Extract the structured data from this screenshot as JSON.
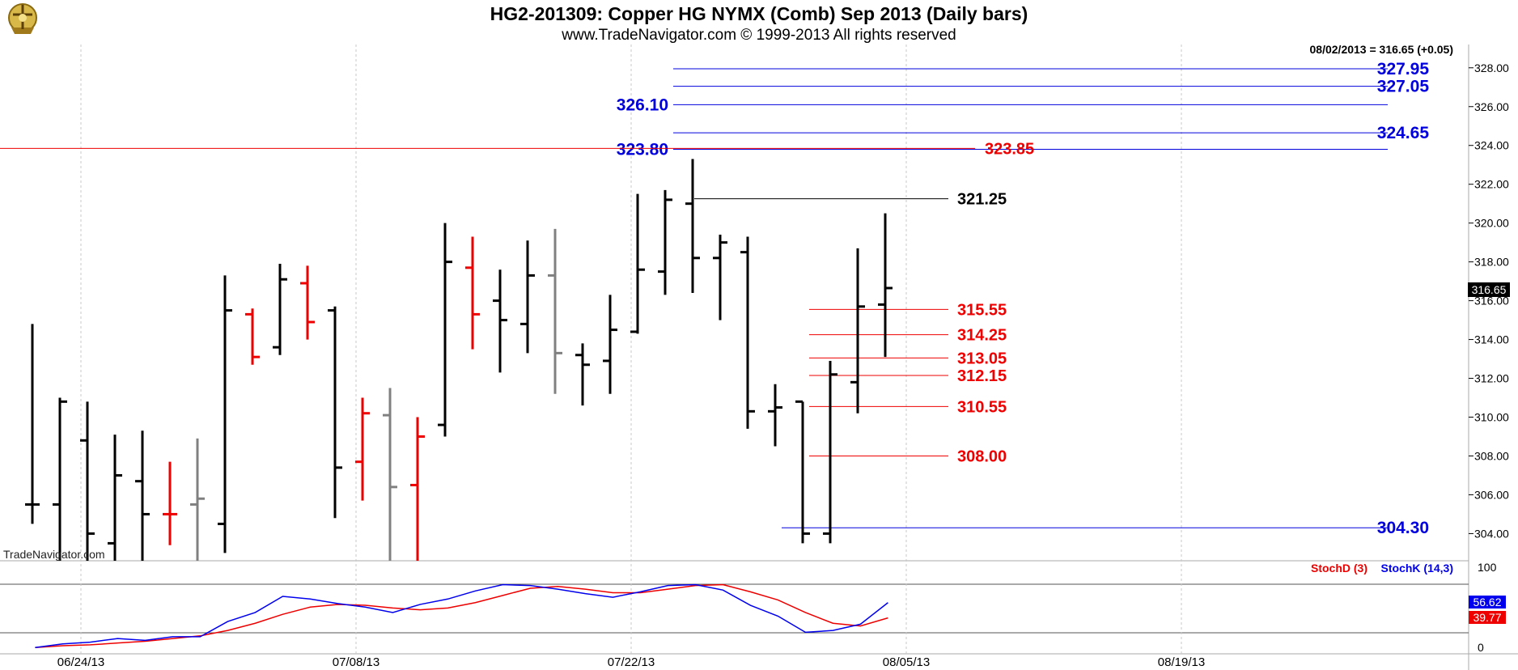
{
  "header": {
    "title": "HG2-201309:  Copper HG NYMX (Comb) Sep 2013  (Daily bars)",
    "subtitle": "www.TradeNavigator.com © 1999-2013 All rights reserved",
    "last_info": "08/02/2013 = 316.65 (+0.05)",
    "watermark": "TradeNavigator.com",
    "logo": "trade-navigator-logo-icon"
  },
  "colors": {
    "up": "#000000",
    "down": "#ee0000",
    "neutral": "#808080",
    "fib_blue": "#0000dd",
    "fib_red": "#ee0000",
    "stoch_d": "#ee0000",
    "stoch_k": "#0000ee"
  },
  "chart_data": [
    {
      "type": "ohlc",
      "name": "price",
      "ylim": [
        302.6,
        329.2
      ],
      "y_ticks": [
        "304.00",
        "306.00",
        "308.00",
        "310.00",
        "312.00",
        "314.00",
        "316.00",
        "318.00",
        "320.00",
        "322.00",
        "324.00",
        "326.00",
        "328.00"
      ],
      "x_ticks": [
        "06/24/13",
        "07/08/13",
        "07/22/13",
        "08/05/13",
        "08/19/13"
      ],
      "last_price": "316.65",
      "bars": [
        {
          "high": 314.8,
          "low": 304.5,
          "open": 305.5,
          "close": 305.5,
          "color": "up"
        },
        {
          "high": 311.0,
          "low": 302.6,
          "open": 305.5,
          "close": 310.8,
          "color": "up"
        },
        {
          "high": 310.8,
          "low": 302.6,
          "open": 308.8,
          "close": 304.0,
          "color": "up"
        },
        {
          "high": 309.1,
          "low": 302.6,
          "open": 303.5,
          "close": 307.0,
          "color": "up"
        },
        {
          "high": 309.3,
          "low": 302.6,
          "open": 306.7,
          "close": 305.0,
          "color": "up"
        },
        {
          "high": 307.7,
          "low": 303.4,
          "open": 305.0,
          "close": 305.0,
          "color": "down"
        },
        {
          "high": 308.9,
          "low": 302.6,
          "open": 305.5,
          "close": 305.8,
          "color": "neutral"
        },
        {
          "high": 317.3,
          "low": 303.0,
          "open": 304.5,
          "close": 315.5,
          "color": "up"
        },
        {
          "high": 315.6,
          "low": 312.7,
          "open": 315.3,
          "close": 313.1,
          "color": "down"
        },
        {
          "high": 317.9,
          "low": 313.2,
          "open": 313.6,
          "close": 317.1,
          "color": "up"
        },
        {
          "high": 317.8,
          "low": 314.0,
          "open": 316.9,
          "close": 314.9,
          "color": "down"
        },
        {
          "high": 315.7,
          "low": 304.8,
          "open": 315.5,
          "close": 307.4,
          "color": "up"
        },
        {
          "high": 311.0,
          "low": 305.7,
          "open": 307.7,
          "close": 310.2,
          "color": "down"
        },
        {
          "high": 311.5,
          "low": 302.6,
          "open": 310.1,
          "close": 306.4,
          "color": "neutral"
        },
        {
          "high": 310.0,
          "low": 302.6,
          "open": 306.5,
          "close": 309.0,
          "color": "down"
        },
        {
          "high": 320.0,
          "low": 309.0,
          "open": 309.6,
          "close": 318.0,
          "color": "up"
        },
        {
          "high": 319.3,
          "low": 313.5,
          "open": 317.7,
          "close": 315.3,
          "color": "down"
        },
        {
          "high": 317.6,
          "low": 312.3,
          "open": 316.0,
          "close": 315.0,
          "color": "up"
        },
        {
          "high": 319.1,
          "low": 313.3,
          "open": 314.8,
          "close": 317.3,
          "color": "up"
        },
        {
          "high": 319.7,
          "low": 311.2,
          "open": 317.3,
          "close": 313.3,
          "color": "neutral"
        },
        {
          "high": 313.8,
          "low": 310.6,
          "open": 313.2,
          "close": 312.7,
          "color": "up"
        },
        {
          "high": 316.3,
          "low": 311.2,
          "open": 312.9,
          "close": 314.5,
          "color": "up"
        },
        {
          "high": 321.5,
          "low": 314.3,
          "open": 314.4,
          "close": 317.6,
          "color": "up"
        },
        {
          "high": 321.7,
          "low": 316.3,
          "open": 317.5,
          "close": 321.2,
          "color": "up"
        },
        {
          "high": 323.3,
          "low": 316.4,
          "open": 321.0,
          "close": 318.2,
          "color": "up"
        },
        {
          "high": 319.4,
          "low": 315.0,
          "open": 318.2,
          "close": 319.0,
          "color": "up"
        },
        {
          "high": 319.3,
          "low": 309.4,
          "open": 318.5,
          "close": 310.3,
          "color": "up"
        },
        {
          "high": 311.7,
          "low": 308.5,
          "open": 310.3,
          "close": 310.5,
          "color": "up"
        },
        {
          "high": 310.8,
          "low": 303.5,
          "open": 310.8,
          "close": 304.0,
          "color": "up"
        },
        {
          "high": 312.9,
          "low": 303.5,
          "open": 304.0,
          "close": 312.2,
          "color": "up"
        },
        {
          "high": 318.7,
          "low": 310.2,
          "open": 311.8,
          "close": 315.7,
          "color": "up"
        },
        {
          "high": 320.5,
          "low": 313.1,
          "open": 315.8,
          "close": 316.65,
          "color": "up"
        }
      ],
      "levels": [
        {
          "value": 327.95,
          "label": "327.95",
          "color": "fib_blue",
          "label_side": "right"
        },
        {
          "value": 327.05,
          "label": "327.05",
          "color": "fib_blue",
          "label_side": "right"
        },
        {
          "value": 326.1,
          "label": "326.10",
          "color": "fib_blue",
          "label_side": "left"
        },
        {
          "value": 324.65,
          "label": "324.65",
          "color": "fib_blue",
          "label_side": "right"
        },
        {
          "value": 323.8,
          "label": "323.80",
          "color": "fib_blue",
          "label_side": "left"
        },
        {
          "value": 304.3,
          "label": "304.30",
          "color": "fib_blue",
          "label_side": "right"
        },
        {
          "value": 323.85,
          "label": "323.85",
          "color": "fib_red",
          "label_side": "right",
          "full_width": true
        },
        {
          "value": 321.25,
          "label": "321.25",
          "color": "black",
          "label_side": "right"
        },
        {
          "value": 315.55,
          "label": "315.55",
          "color": "fib_red",
          "label_side": "right"
        },
        {
          "value": 314.25,
          "label": "314.25",
          "color": "fib_red",
          "label_side": "right"
        },
        {
          "value": 313.05,
          "label": "313.05",
          "color": "fib_red",
          "label_side": "right"
        },
        {
          "value": 312.15,
          "label": "312.15",
          "color": "fib_red",
          "label_side": "right"
        },
        {
          "value": 310.55,
          "label": "310.55",
          "color": "fib_red",
          "label_side": "right"
        },
        {
          "value": 308.0,
          "label": "308.00",
          "color": "fib_red",
          "label_side": "right"
        }
      ]
    },
    {
      "type": "line",
      "name": "stochastic",
      "ylim": [
        0,
        100
      ],
      "y_ticks": [
        "0",
        "100"
      ],
      "overbought": 80,
      "oversold": 20,
      "legend": {
        "d_label": "StochD (3)",
        "k_label": "StochK (14,3)"
      },
      "series": [
        {
          "name": "StochD (3)",
          "color": "stoch_d",
          "last_label": "39.77",
          "values": [
            7,
            9,
            10,
            12,
            14,
            17,
            20,
            26,
            34,
            44,
            52,
            55,
            54,
            51,
            49,
            51,
            57,
            65,
            73,
            75,
            72,
            68,
            68,
            72,
            76,
            77,
            69,
            60,
            46,
            34,
            31,
            40
          ]
        },
        {
          "name": "StochK (14,3)",
          "color": "stoch_k",
          "last_label": "56.62",
          "values": [
            7,
            11,
            13,
            17,
            15,
            19,
            19,
            36,
            46,
            64,
            61,
            56,
            52,
            46,
            55,
            61,
            70,
            77,
            76,
            72,
            67,
            63,
            69,
            76,
            77,
            71,
            54,
            42,
            24,
            26,
            33,
            57
          ]
        }
      ]
    }
  ]
}
